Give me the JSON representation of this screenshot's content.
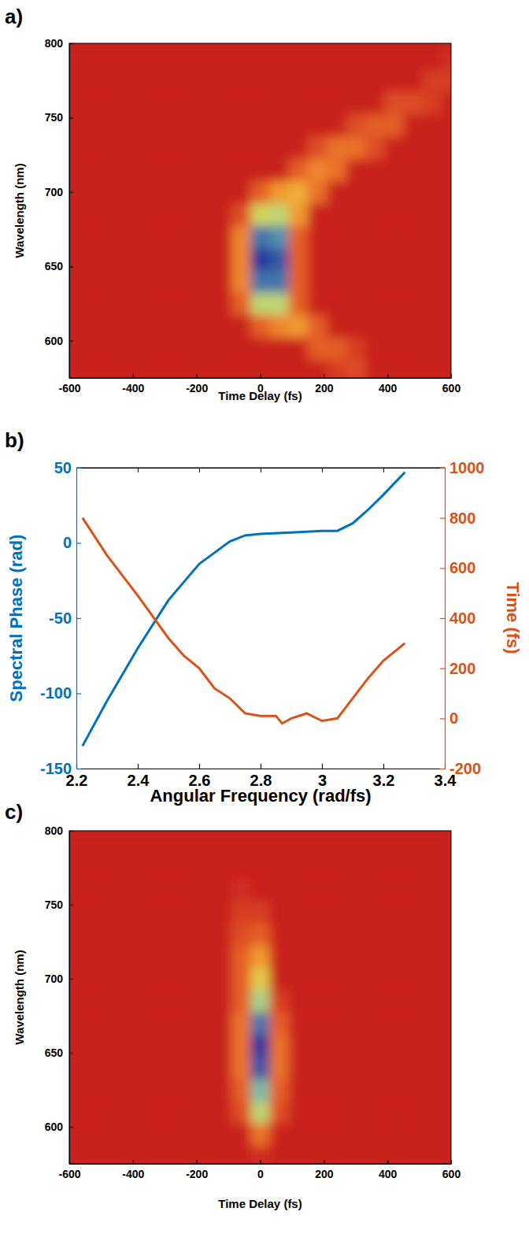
{
  "chart_data": [
    {
      "type": "heatmap",
      "panel": "a)",
      "x_label": "Time Delay (fs)",
      "y_label": "Wavelength (nm)",
      "xlim": [
        -600,
        600
      ],
      "ylim": [
        575,
        800
      ],
      "xticks": [
        -600,
        -400,
        -200,
        0,
        200,
        400,
        600
      ],
      "yticks": [
        600,
        650,
        700,
        750,
        800
      ],
      "x": [
        -600,
        -540,
        -480,
        -420,
        -360,
        -300,
        -240,
        -180,
        -120,
        -60,
        0,
        60,
        120,
        180,
        240,
        300,
        360,
        420,
        480,
        540,
        600
      ],
      "y": [
        580,
        595,
        610,
        625,
        640,
        655,
        670,
        685,
        700,
        715,
        730,
        745,
        760,
        775,
        790
      ],
      "cells": [
        [
          0,
          0,
          0,
          0,
          0,
          0,
          0,
          0,
          0,
          0,
          0,
          0,
          0,
          0,
          0.1,
          0.15,
          0,
          0,
          0,
          0,
          0
        ],
        [
          0,
          0,
          0,
          0,
          0,
          0,
          0,
          0,
          0,
          0,
          0,
          0,
          0,
          0.2,
          0.2,
          0.1,
          0,
          0,
          0,
          0,
          0
        ],
        [
          0,
          0,
          0,
          0,
          0,
          0,
          0,
          0,
          0,
          0,
          0.2,
          0.3,
          0.35,
          0.2,
          0,
          0,
          0,
          0,
          0,
          0,
          0
        ],
        [
          0,
          0,
          0,
          0,
          0,
          0,
          0,
          0,
          0,
          0.2,
          0.6,
          0.6,
          0.2,
          0,
          0,
          0,
          0,
          0,
          0,
          0,
          0
        ],
        [
          0,
          0,
          0,
          0,
          0,
          0,
          0,
          0,
          0,
          0.3,
          0.9,
          0.9,
          0.2,
          0,
          0,
          0,
          0,
          0,
          0,
          0,
          0
        ],
        [
          0,
          0,
          0,
          0,
          0,
          0,
          0,
          0,
          0,
          0.3,
          1,
          0.95,
          0.2,
          0,
          0,
          0,
          0,
          0,
          0,
          0,
          0
        ],
        [
          0,
          0,
          0,
          0,
          0,
          0,
          0,
          0,
          0,
          0.3,
          0.9,
          0.85,
          0.2,
          0,
          0,
          0,
          0,
          0,
          0,
          0,
          0
        ],
        [
          0,
          0,
          0,
          0,
          0,
          0,
          0,
          0,
          0,
          0.15,
          0.55,
          0.6,
          0.35,
          0,
          0,
          0,
          0,
          0,
          0,
          0,
          0
        ],
        [
          0,
          0,
          0,
          0,
          0,
          0,
          0,
          0,
          0,
          0,
          0.2,
          0.35,
          0.4,
          0.25,
          0,
          0,
          0,
          0,
          0,
          0,
          0
        ],
        [
          0,
          0,
          0,
          0,
          0,
          0,
          0,
          0,
          0,
          0,
          0,
          0,
          0.2,
          0.3,
          0.25,
          0,
          0,
          0,
          0,
          0,
          0
        ],
        [
          0,
          0,
          0,
          0,
          0,
          0,
          0,
          0,
          0,
          0,
          0,
          0,
          0,
          0.15,
          0.25,
          0.25,
          0.15,
          0,
          0,
          0,
          0
        ],
        [
          0,
          0,
          0,
          0,
          0,
          0,
          0,
          0,
          0,
          0,
          0,
          0,
          0,
          0,
          0,
          0.15,
          0.2,
          0.2,
          0,
          0,
          0
        ],
        [
          0,
          0,
          0,
          0,
          0,
          0,
          0,
          0,
          0,
          0,
          0,
          0,
          0,
          0,
          0,
          0,
          0,
          0.15,
          0.15,
          0.1,
          0
        ],
        [
          0,
          0,
          0,
          0,
          0,
          0,
          0,
          0,
          0,
          0,
          0,
          0,
          0,
          0,
          0,
          0,
          0,
          0,
          0,
          0.1,
          0.1
        ],
        [
          0,
          0,
          0,
          0,
          0,
          0,
          0,
          0,
          0,
          0,
          0,
          0,
          0,
          0,
          0,
          0,
          0,
          0,
          0,
          0,
          0.05
        ]
      ]
    },
    {
      "type": "line",
      "panel": "b)",
      "x_label": "Angular Frequency (rad/fs)",
      "y_label": "Spectral Phase (rad)",
      "y2_label": "Time (fs)",
      "xlim": [
        2.2,
        3.4
      ],
      "ylim": [
        -150,
        50
      ],
      "y2lim": [
        -200,
        1000
      ],
      "xticks": [
        2.2,
        2.4,
        2.6,
        2.8,
        3,
        3.2,
        3.4
      ],
      "yticks": [
        -150,
        -100,
        -50,
        0,
        50
      ],
      "y2ticks": [
        -200,
        0,
        200,
        400,
        600,
        800,
        1000
      ],
      "series": [
        {
          "name": "Spectral Phase",
          "color": "#0072bd",
          "axis": "y",
          "x": [
            2.22,
            2.3,
            2.4,
            2.5,
            2.6,
            2.7,
            2.75,
            2.8,
            2.9,
            3.0,
            3.05,
            3.1,
            3.15,
            3.2,
            3.27
          ],
          "values": [
            -135,
            -105,
            -70,
            -38,
            -14,
            1,
            5,
            6,
            7,
            8,
            8,
            13,
            22,
            32,
            47
          ]
        },
        {
          "name": "Time",
          "color": "#d95319",
          "axis": "y2",
          "x": [
            2.22,
            2.3,
            2.4,
            2.5,
            2.55,
            2.6,
            2.65,
            2.7,
            2.75,
            2.8,
            2.85,
            2.87,
            2.9,
            2.95,
            3.0,
            3.05,
            3.1,
            3.15,
            3.2,
            3.27
          ],
          "values": [
            800,
            650,
            490,
            320,
            250,
            200,
            120,
            80,
            20,
            10,
            10,
            -20,
            0,
            20,
            -10,
            0,
            80,
            160,
            230,
            300
          ]
        }
      ]
    },
    {
      "type": "heatmap",
      "panel": "c)",
      "x_label": "Time Delay (fs)",
      "y_label": "Wavelength (nm)",
      "xlim": [
        -600,
        600
      ],
      "ylim": [
        575,
        800
      ],
      "xticks": [
        -600,
        -400,
        -200,
        0,
        200,
        400,
        600
      ],
      "yticks": [
        600,
        650,
        700,
        750,
        800
      ],
      "x": [
        -600,
        -540,
        -480,
        -420,
        -360,
        -300,
        -240,
        -180,
        -120,
        -60,
        0,
        60,
        120,
        180,
        240,
        300,
        360,
        420,
        480,
        540,
        600
      ],
      "y": [
        580,
        595,
        610,
        625,
        640,
        655,
        670,
        685,
        700,
        715,
        730,
        745,
        760,
        775,
        790
      ],
      "cells": [
        [
          0,
          0,
          0,
          0,
          0,
          0,
          0,
          0,
          0,
          0,
          0.05,
          0,
          0,
          0,
          0,
          0,
          0,
          0,
          0,
          0,
          0
        ],
        [
          0,
          0,
          0,
          0,
          0,
          0,
          0,
          0,
          0,
          0,
          0.25,
          0,
          0,
          0,
          0,
          0,
          0,
          0,
          0,
          0,
          0
        ],
        [
          0,
          0,
          0,
          0,
          0,
          0,
          0,
          0,
          0,
          0.15,
          0.6,
          0.15,
          0,
          0,
          0,
          0,
          0,
          0,
          0,
          0,
          0
        ],
        [
          0,
          0,
          0,
          0,
          0,
          0,
          0,
          0,
          0,
          0.2,
          0.75,
          0.2,
          0,
          0,
          0,
          0,
          0,
          0,
          0,
          0,
          0
        ],
        [
          0,
          0,
          0,
          0,
          0,
          0,
          0,
          0,
          0,
          0.25,
          0.95,
          0.25,
          0,
          0,
          0,
          0,
          0,
          0,
          0,
          0,
          0
        ],
        [
          0,
          0,
          0,
          0,
          0,
          0,
          0,
          0,
          0,
          0.25,
          1,
          0.25,
          0,
          0,
          0,
          0,
          0,
          0,
          0,
          0,
          0
        ],
        [
          0,
          0,
          0,
          0,
          0,
          0,
          0,
          0,
          0,
          0.25,
          0.9,
          0.2,
          0,
          0,
          0,
          0,
          0,
          0,
          0,
          0,
          0
        ],
        [
          0,
          0,
          0,
          0,
          0,
          0,
          0,
          0,
          0,
          0.2,
          0.65,
          0.1,
          0,
          0,
          0,
          0,
          0,
          0,
          0,
          0,
          0
        ],
        [
          0,
          0,
          0,
          0,
          0,
          0,
          0,
          0,
          0,
          0.2,
          0.5,
          0,
          0,
          0,
          0,
          0,
          0,
          0,
          0,
          0,
          0
        ],
        [
          0,
          0,
          0,
          0,
          0,
          0,
          0,
          0,
          0,
          0.2,
          0.35,
          0,
          0,
          0,
          0,
          0,
          0,
          0,
          0,
          0,
          0
        ],
        [
          0,
          0,
          0,
          0,
          0,
          0,
          0,
          0,
          0,
          0.15,
          0.2,
          0,
          0,
          0,
          0,
          0,
          0,
          0,
          0,
          0,
          0
        ],
        [
          0,
          0,
          0,
          0,
          0,
          0,
          0,
          0,
          0,
          0.1,
          0.1,
          0,
          0,
          0,
          0,
          0,
          0,
          0,
          0,
          0,
          0
        ],
        [
          0,
          0,
          0,
          0,
          0,
          0,
          0,
          0,
          0,
          0.05,
          0,
          0,
          0,
          0,
          0,
          0,
          0,
          0,
          0,
          0,
          0
        ],
        [
          0,
          0,
          0,
          0,
          0,
          0,
          0,
          0,
          0,
          0,
          0,
          0,
          0,
          0,
          0,
          0,
          0,
          0,
          0,
          0,
          0
        ],
        [
          0,
          0,
          0,
          0,
          0,
          0,
          0,
          0,
          0,
          0,
          0,
          0,
          0,
          0,
          0,
          0,
          0,
          0,
          0,
          0,
          0
        ]
      ]
    }
  ]
}
